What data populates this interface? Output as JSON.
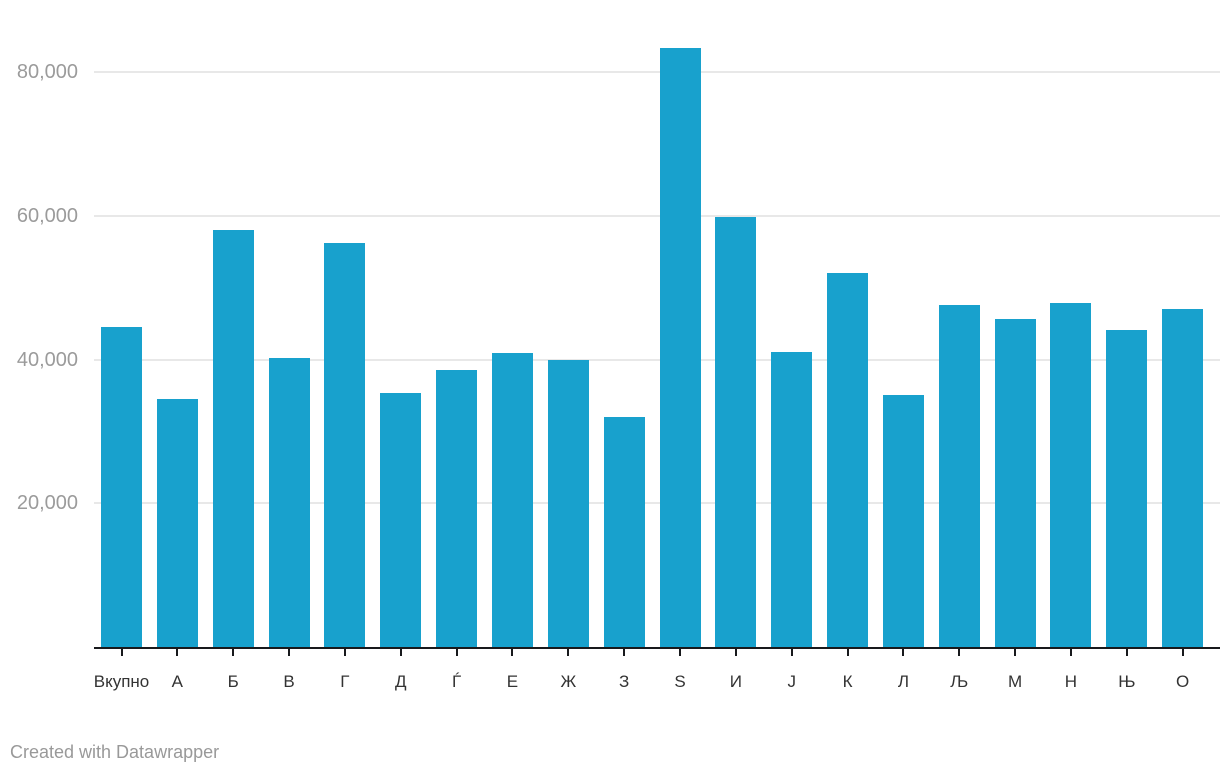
{
  "footer": {
    "credit": "Created with Datawrapper"
  },
  "colors": {
    "bar": "#18a1cd",
    "grid": "#e8e8e8",
    "axis": "#18191c",
    "y_label": "#9b9b9b",
    "x_label": "#333333",
    "footer_text": "#999999",
    "background": "#ffffff"
  },
  "chart_data": {
    "type": "bar",
    "title": "",
    "xlabel": "",
    "ylabel": "",
    "categories": [
      "Вкупно",
      "А",
      "Б",
      "В",
      "Г",
      "Д",
      "Ѓ",
      "Е",
      "Ж",
      "З",
      "Ѕ",
      "И",
      "Ј",
      "К",
      "Л",
      "Љ",
      "М",
      "Н",
      "Њ",
      "О"
    ],
    "values": [
      44500,
      34500,
      58000,
      40200,
      56200,
      35300,
      38500,
      40900,
      39900,
      32000,
      83300,
      59800,
      41000,
      52000,
      35100,
      47600,
      45600,
      47900,
      44100,
      47000
    ],
    "ylim": [
      0,
      85000
    ],
    "yticks": [
      20000,
      40000,
      60000,
      80000
    ],
    "ytick_labels": [
      "20,000",
      "40,000",
      "60,000",
      "80,000"
    ],
    "grid": "horizontal-only",
    "legend": "none",
    "bar_orientation": "vertical"
  }
}
